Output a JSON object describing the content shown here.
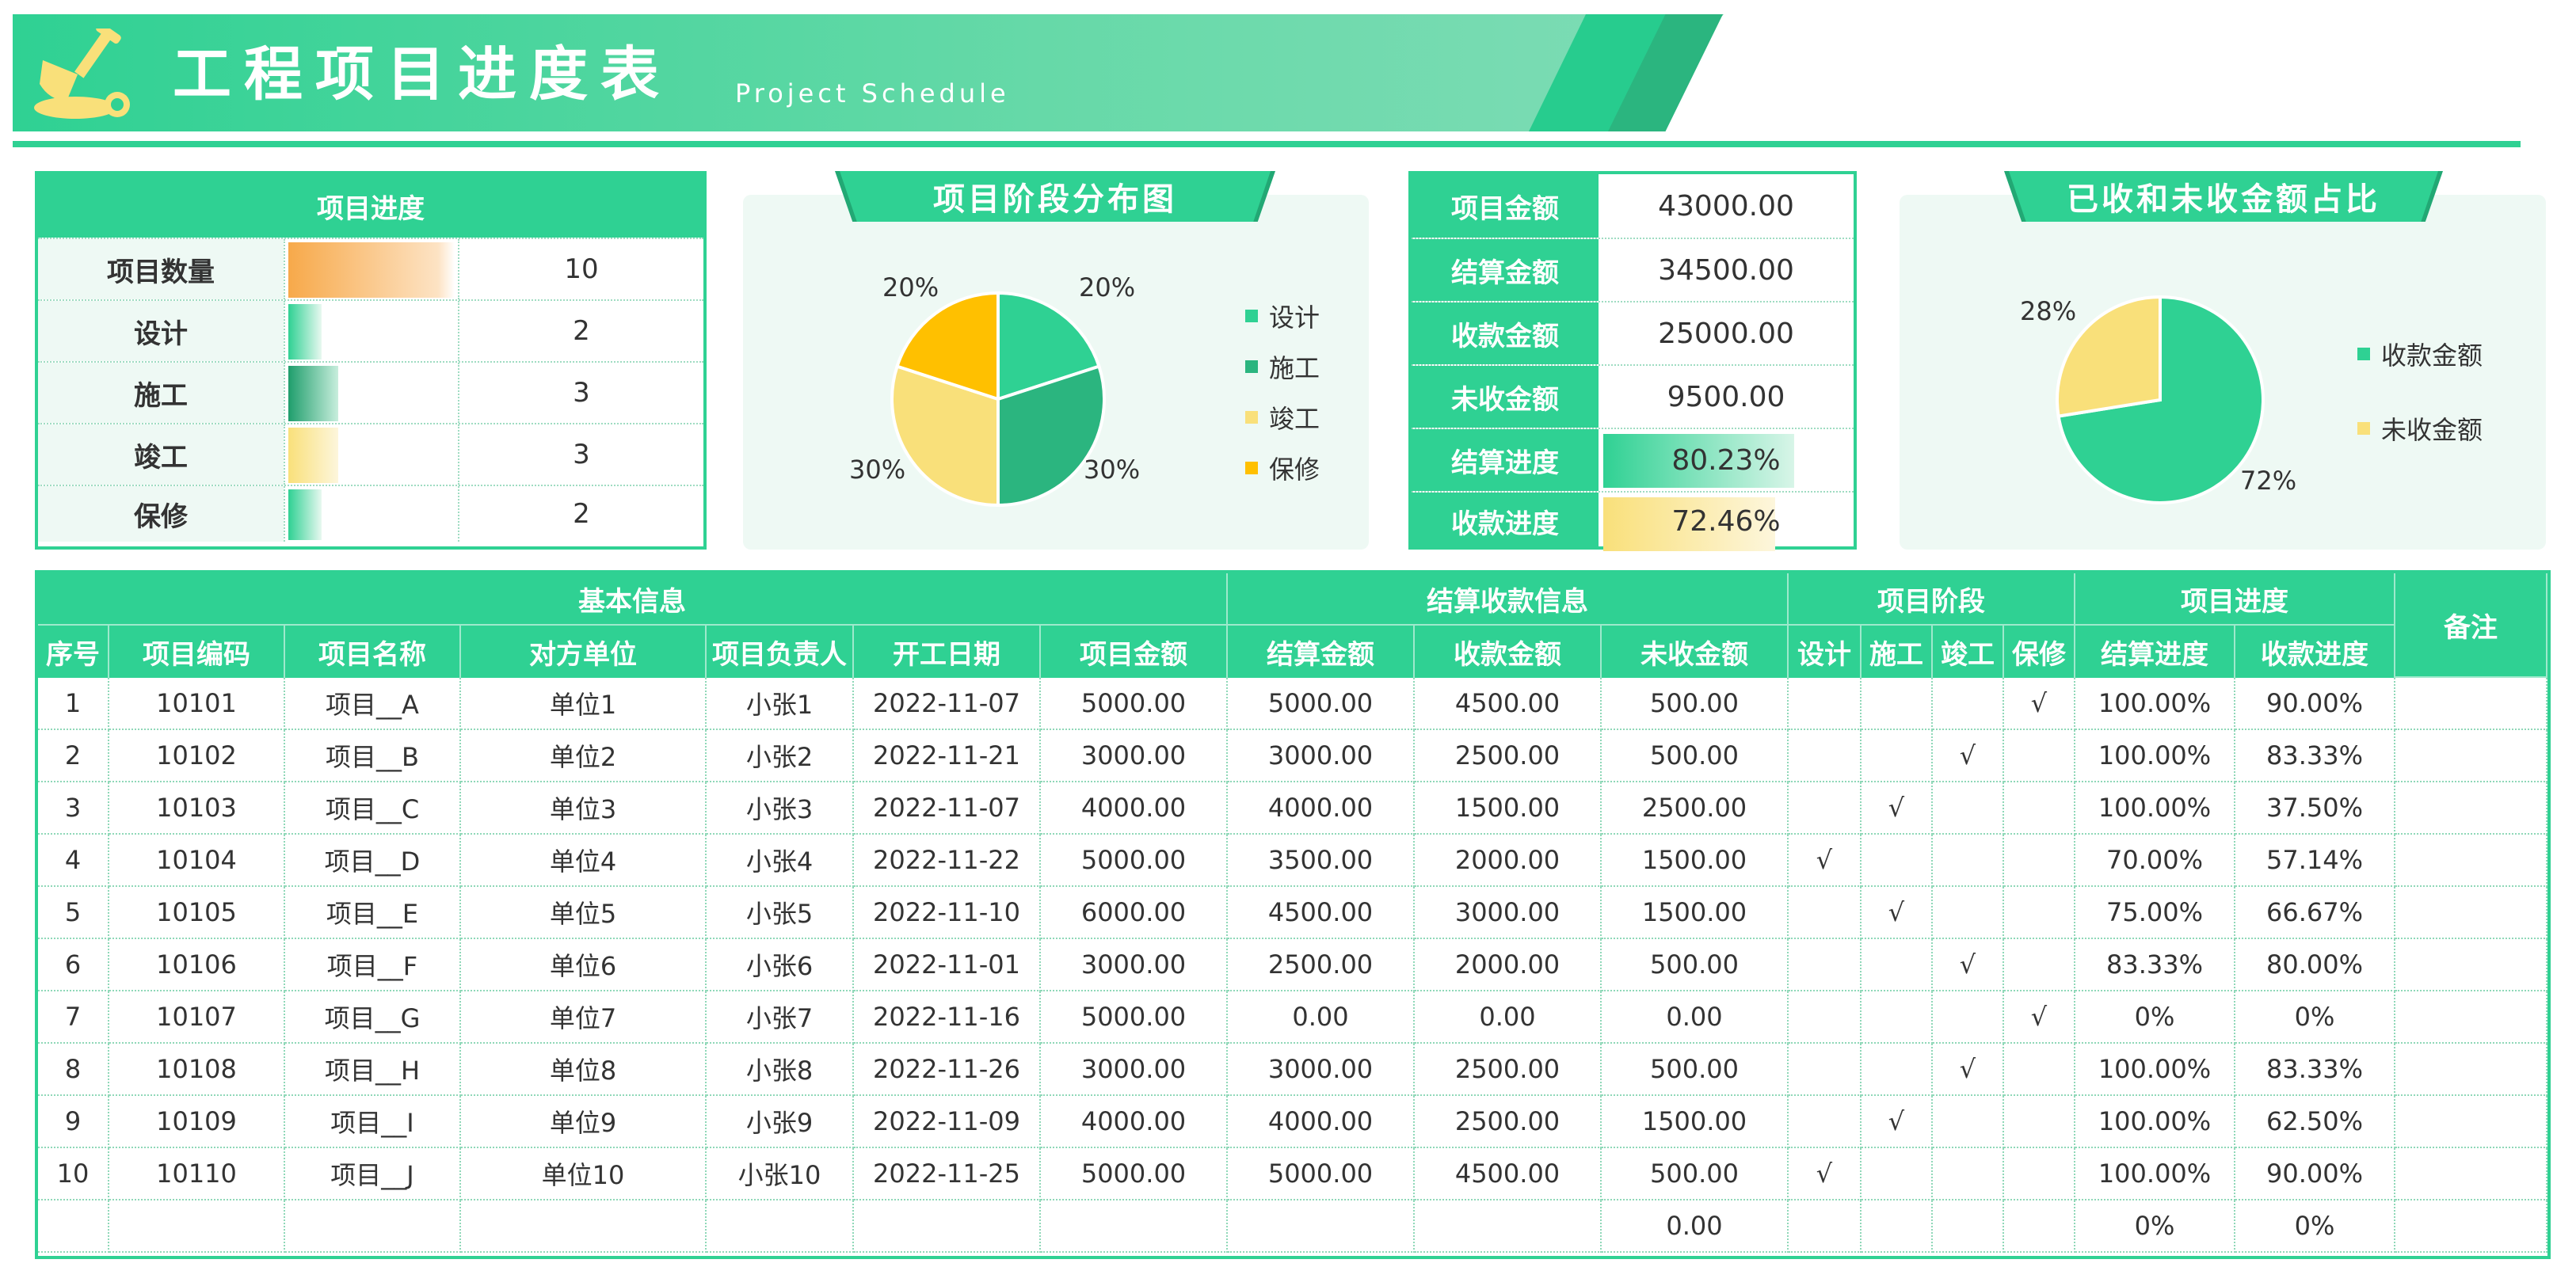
{
  "header": {
    "title": "工程项目进度表",
    "subtitle": "Project Schedule",
    "logo_icon": "shovel-icon"
  },
  "colors": {
    "primary": "#2fd193",
    "dark_green": "#2bb57f",
    "yellow": "#f9e07a",
    "gold": "#ffc000",
    "orange": "#f7a94a"
  },
  "progress_panel": {
    "title": "项目进度",
    "rows": [
      {
        "label": "项目数量",
        "value": "10",
        "fraction": 1.0,
        "color": "orange"
      },
      {
        "label": "设计",
        "value": "2",
        "fraction": 0.2,
        "color": "green"
      },
      {
        "label": "施工",
        "value": "3",
        "fraction": 0.3,
        "color": "dark"
      },
      {
        "label": "竣工",
        "value": "3",
        "fraction": 0.3,
        "color": "yellow"
      },
      {
        "label": "保修",
        "value": "2",
        "fraction": 0.2,
        "color": "green"
      }
    ]
  },
  "stage_chart": {
    "title": "项目阶段分布图",
    "chart_data": {
      "type": "pie",
      "categories": [
        "设计",
        "施工",
        "竣工",
        "保修"
      ],
      "values": [
        2,
        3,
        3,
        2
      ],
      "labels": [
        "20%",
        "30%",
        "30%",
        "20%"
      ],
      "colors": [
        "#2fd193",
        "#2bb57f",
        "#f9e07a",
        "#ffc000"
      ],
      "legend": "right"
    }
  },
  "amount_panel": {
    "rows": [
      {
        "label": "项目金额",
        "value": "43000.00"
      },
      {
        "label": "结算金额",
        "value": "34500.00"
      },
      {
        "label": "收款金额",
        "value": "25000.00"
      },
      {
        "label": "未收金额",
        "value": "9500.00"
      },
      {
        "label": "结算进度",
        "value": "80.23%",
        "fraction": 0.8023,
        "color": "green"
      },
      {
        "label": "收款进度",
        "value": "72.46%",
        "fraction": 0.7246,
        "color": "yellow"
      }
    ]
  },
  "receipt_chart": {
    "title": "已收和未收金额占比",
    "chart_data": {
      "type": "pie",
      "categories": [
        "收款金额",
        "未收金额"
      ],
      "values": [
        25000,
        9500
      ],
      "labels": [
        "72%",
        "28%"
      ],
      "colors": [
        "#2fd193",
        "#f9e07a"
      ],
      "legend": "right"
    }
  },
  "table": {
    "groups": [
      "基本信息",
      "结算收款信息",
      "项目阶段",
      "项目进度",
      "备注"
    ],
    "columns": [
      "序号",
      "项目编码",
      "项目名称",
      "对方单位",
      "项目负责人",
      "开工日期",
      "项目金额",
      "结算金额",
      "收款金额",
      "未收金额",
      "设计",
      "施工",
      "竣工",
      "保修",
      "结算进度",
      "收款进度",
      ""
    ],
    "rows": [
      [
        "1",
        "10101",
        "项目__A",
        "单位1",
        "小张1",
        "2022-11-07",
        "5000.00",
        "5000.00",
        "4500.00",
        "500.00",
        "",
        "",
        "",
        "√",
        "100.00%",
        "90.00%",
        ""
      ],
      [
        "2",
        "10102",
        "项目__B",
        "单位2",
        "小张2",
        "2022-11-21",
        "3000.00",
        "3000.00",
        "2500.00",
        "500.00",
        "",
        "",
        "√",
        "",
        "100.00%",
        "83.33%",
        ""
      ],
      [
        "3",
        "10103",
        "项目__C",
        "单位3",
        "小张3",
        "2022-11-07",
        "4000.00",
        "4000.00",
        "1500.00",
        "2500.00",
        "",
        "√",
        "",
        "",
        "100.00%",
        "37.50%",
        ""
      ],
      [
        "4",
        "10104",
        "项目__D",
        "单位4",
        "小张4",
        "2022-11-22",
        "5000.00",
        "3500.00",
        "2000.00",
        "1500.00",
        "√",
        "",
        "",
        "",
        "70.00%",
        "57.14%",
        ""
      ],
      [
        "5",
        "10105",
        "项目__E",
        "单位5",
        "小张5",
        "2022-11-10",
        "6000.00",
        "4500.00",
        "3000.00",
        "1500.00",
        "",
        "√",
        "",
        "",
        "75.00%",
        "66.67%",
        ""
      ],
      [
        "6",
        "10106",
        "项目__F",
        "单位6",
        "小张6",
        "2022-11-01",
        "3000.00",
        "2500.00",
        "2000.00",
        "500.00",
        "",
        "",
        "√",
        "",
        "83.33%",
        "80.00%",
        ""
      ],
      [
        "7",
        "10107",
        "项目__G",
        "单位7",
        "小张7",
        "2022-11-16",
        "5000.00",
        "0.00",
        "0.00",
        "0.00",
        "",
        "",
        "",
        "√",
        "0%",
        "0%",
        ""
      ],
      [
        "8",
        "10108",
        "项目__H",
        "单位8",
        "小张8",
        "2022-11-26",
        "3000.00",
        "3000.00",
        "2500.00",
        "500.00",
        "",
        "",
        "√",
        "",
        "100.00%",
        "83.33%",
        ""
      ],
      [
        "9",
        "10109",
        "项目__I",
        "单位9",
        "小张9",
        "2022-11-09",
        "4000.00",
        "4000.00",
        "2500.00",
        "1500.00",
        "",
        "√",
        "",
        "",
        "100.00%",
        "62.50%",
        ""
      ],
      [
        "10",
        "10110",
        "项目__J",
        "单位10",
        "小张10",
        "2022-11-25",
        "5000.00",
        "5000.00",
        "4500.00",
        "500.00",
        "√",
        "",
        "",
        "",
        "100.00%",
        "90.00%",
        ""
      ],
      [
        "",
        "",
        "",
        "",
        "",
        "",
        "",
        "",
        "",
        "0.00",
        "",
        "",
        "",
        "",
        "0%",
        "0%",
        ""
      ]
    ]
  }
}
